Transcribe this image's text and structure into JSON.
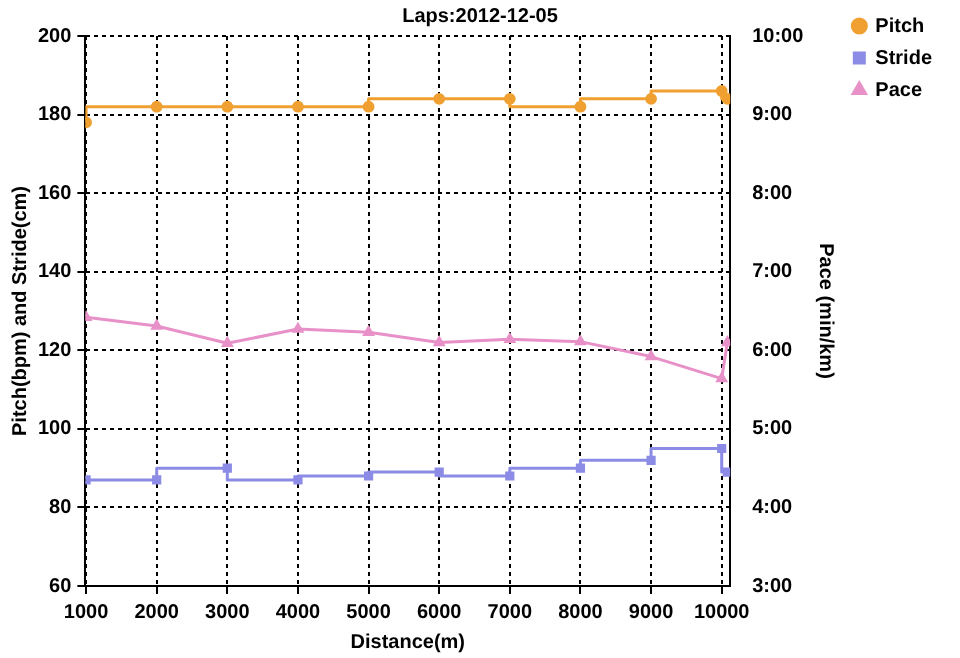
{
  "chart_data": {
    "type": "line",
    "title": "Laps:2012-12-05",
    "xlabel": "Distance(m)",
    "ylabel": "Pitch(bpm) and Stride(cm)",
    "y2label": "Pace (min/km)",
    "x": [
      1000,
      2000,
      3000,
      4000,
      5000,
      6000,
      7000,
      8000,
      9000,
      10000,
      10080
    ],
    "xlim": [
      990,
      10120
    ],
    "xticks": [
      1000,
      2000,
      3000,
      4000,
      5000,
      6000,
      7000,
      8000,
      9000,
      10000
    ],
    "ylim": [
      60,
      200
    ],
    "yticks": [
      60,
      80,
      100,
      120,
      140,
      160,
      180,
      200
    ],
    "y2lim": [
      3,
      10
    ],
    "y2ticks": [
      {
        "value": 3,
        "label": "3:00"
      },
      {
        "value": 4,
        "label": "4:00"
      },
      {
        "value": 5,
        "label": "5:00"
      },
      {
        "value": 6,
        "label": "6:00"
      },
      {
        "value": 7,
        "label": "7:00"
      },
      {
        "value": 8,
        "label": "8:00"
      },
      {
        "value": 9,
        "label": "9:00"
      },
      {
        "value": 10,
        "label": "10:00"
      }
    ],
    "series": [
      {
        "name": "Pitch",
        "type": "step",
        "color": "#f0a030",
        "marker": "circle",
        "values": [
          178,
          182,
          182,
          182,
          182,
          184,
          184,
          182,
          184,
          186,
          184
        ]
      },
      {
        "name": "Stride",
        "type": "step",
        "color": "#8c8ce6",
        "marker": "square",
        "values": [
          87,
          87,
          90,
          87,
          88,
          89,
          88,
          90,
          92,
          95,
          89
        ]
      },
      {
        "name": "Pace",
        "type": "line",
        "axis": "y2",
        "color": "#e890c8",
        "marker": "triangle",
        "values": [
          6.42,
          6.31,
          6.09,
          6.27,
          6.23,
          6.1,
          6.14,
          6.11,
          5.92,
          5.64,
          6.1
        ]
      }
    ],
    "grid": true,
    "legend": "top right"
  }
}
